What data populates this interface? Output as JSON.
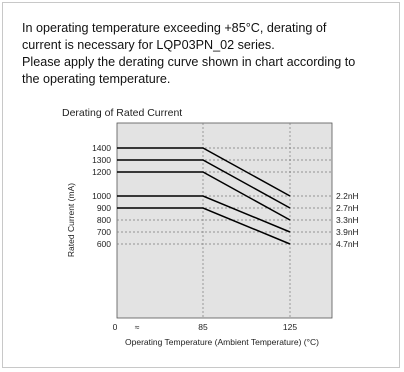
{
  "intro": {
    "line1": "In operating temperature exceeding +85°C, derating of",
    "line2": "current is necessary for LQP03PN_02 series.",
    "line3": "Please apply the derating curve shown in chart according to",
    "line4": "the operating temperature."
  },
  "chart_data": {
    "type": "line",
    "title": "Derating of Rated Current",
    "xlabel": "Operating Temperature (Ambient Temperature) (°C)",
    "ylabel": "Rated Current (mA)",
    "x_ticks": [
      "0",
      "85",
      "125"
    ],
    "y_ticks": [
      1400,
      1300,
      1200,
      1000,
      900,
      800,
      700,
      600
    ],
    "axis_break_marker": "≈",
    "grid": true,
    "series": [
      {
        "name": "2.2nH",
        "x": [
          0,
          85,
          125
        ],
        "y": [
          1400,
          1400,
          1000
        ]
      },
      {
        "name": "2.7nH",
        "x": [
          0,
          85,
          125
        ],
        "y": [
          1300,
          1300,
          900
        ]
      },
      {
        "name": "3.3nH",
        "x": [
          0,
          85,
          125
        ],
        "y": [
          1200,
          1200,
          800
        ]
      },
      {
        "name": "3.9nH",
        "x": [
          0,
          85,
          125
        ],
        "y": [
          1000,
          1000,
          700
        ]
      },
      {
        "name": "4.7nH",
        "x": [
          0,
          85,
          125
        ],
        "y": [
          900,
          900,
          600
        ]
      }
    ],
    "colors": {
      "plot_bg": "#e3e3e3",
      "line": "#000000",
      "grid": "#7a7a7a"
    }
  }
}
